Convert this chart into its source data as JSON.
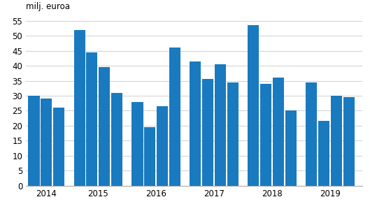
{
  "ylabel": "milj. euroa",
  "bar_color": "#1a7abf",
  "ylim": [
    0,
    57
  ],
  "yticks": [
    0,
    5,
    10,
    15,
    20,
    25,
    30,
    35,
    40,
    45,
    50,
    55
  ],
  "values": [
    30.0,
    29.0,
    26.0,
    52.0,
    44.5,
    39.5,
    31.0,
    28.0,
    19.5,
    26.5,
    46.0,
    41.5,
    35.5,
    40.5,
    34.5,
    53.5,
    34.0,
    36.0,
    25.0,
    34.5,
    21.5,
    30.0,
    29.5
  ],
  "year_labels": [
    "2014",
    "2015",
    "2016",
    "2017",
    "2018",
    "2019"
  ],
  "background_color": "#ffffff",
  "grid_color": "#d0d0d0",
  "tick_label_fontsize": 8.5,
  "ylabel_fontsize": 8.5
}
